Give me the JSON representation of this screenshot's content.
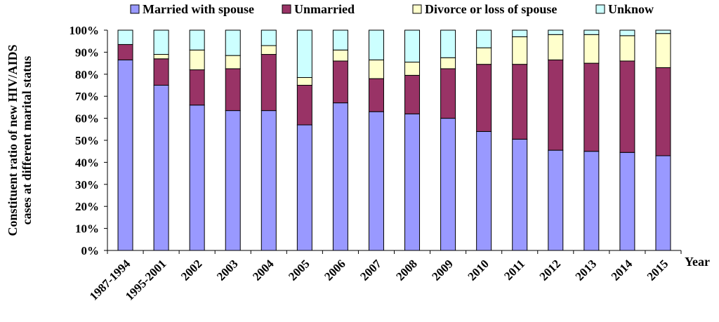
{
  "chart_data": {
    "type": "bar",
    "stacked": true,
    "percent_stacked": true,
    "title": "",
    "xlabel": "Year",
    "ylabel": "Constituent ratio of new HIV/AIDS cases at different marital status",
    "ylabel_lines": [
      "Constituent ratio of new HIV/AIDS",
      "cases at different marital status"
    ],
    "ylim": [
      0,
      100
    ],
    "yticks": [
      "0%",
      "10%",
      "20%",
      "30%",
      "40%",
      "50%",
      "60%",
      "70%",
      "80%",
      "90%",
      "100%"
    ],
    "legend_position": "top",
    "categories": [
      "1987-1994",
      "1995-2001",
      "2002",
      "2003",
      "2004",
      "2005",
      "2006",
      "2007",
      "2008",
      "2009",
      "2010",
      "2011",
      "2012",
      "2013",
      "2014",
      "2015"
    ],
    "series": [
      {
        "name": "Married with spouse",
        "color": "#9999ff",
        "values": [
          86.5,
          75,
          66,
          63.5,
          63.5,
          57,
          67,
          63,
          62,
          60,
          54,
          50.5,
          45.5,
          45,
          44.5,
          43
        ]
      },
      {
        "name": "Unmarried",
        "color": "#993366",
        "values": [
          7,
          12,
          16,
          19,
          25.5,
          18,
          19,
          15,
          17.5,
          22.5,
          30.5,
          34,
          41,
          40,
          41.5,
          40
        ]
      },
      {
        "name": "Divorce or loss of spouse",
        "color": "#ffffcc",
        "values": [
          0,
          2,
          9,
          6,
          4,
          3.5,
          5,
          8.5,
          6,
          5,
          7.5,
          12.5,
          11.5,
          13,
          11.5,
          15.5
        ]
      },
      {
        "name": "Unknow",
        "color": "#ccffff",
        "values": [
          6.5,
          11,
          9,
          11.5,
          7,
          21.5,
          9,
          13.5,
          14.5,
          12.5,
          8,
          3,
          2,
          2,
          2.5,
          1.5
        ]
      }
    ]
  }
}
